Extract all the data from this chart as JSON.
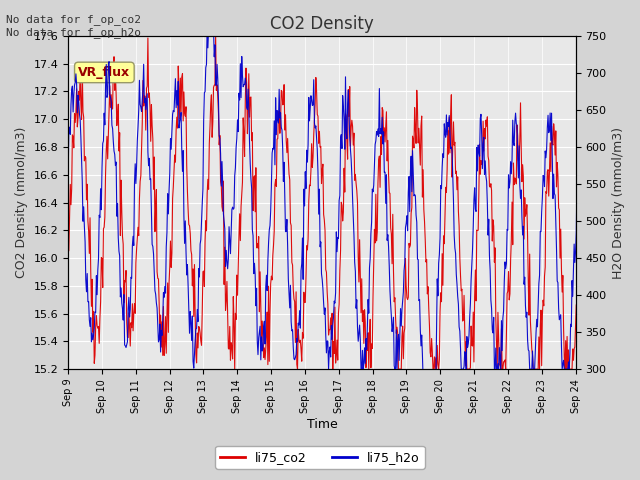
{
  "title": "CO2 Density",
  "xlabel": "Time",
  "ylabel_left": "CO2 Density (mmol/m3)",
  "ylabel_right": "H2O Density (mmol/m3)",
  "top_left_text": "No data for f_op_co2\nNo data for f_op_h2o",
  "vr_flux_label": "VR_flux",
  "ylim_left": [
    15.2,
    17.6
  ],
  "ylim_right": [
    300,
    750
  ],
  "yticks_left": [
    15.2,
    15.4,
    15.6,
    15.8,
    16.0,
    16.2,
    16.4,
    16.6,
    16.8,
    17.0,
    17.2,
    17.4,
    17.6
  ],
  "yticks_right": [
    300,
    350,
    400,
    450,
    500,
    550,
    600,
    650,
    700,
    750
  ],
  "x_tick_labels": [
    "Sep 9",
    "Sep 10",
    "Sep 11",
    "Sep 12",
    "Sep 13",
    "Sep 14",
    "Sep 15",
    "Sep 16",
    "Sep 17",
    "Sep 18",
    "Sep 19",
    "Sep 20",
    "Sep 21",
    "Sep 22",
    "Sep 23",
    "Sep 24"
  ],
  "color_co2": "#dd0000",
  "color_h2o": "#0000cc",
  "legend_labels": [
    "li75_co2",
    "li75_h2o"
  ],
  "bg_color": "#e8e8e8",
  "plot_bg_color": "#e8e8e8",
  "grid_color": "#ffffff",
  "vr_flux_bg": "#ffff99",
  "vr_flux_text_color": "#990000",
  "top_text_color": "#333333",
  "title_color": "#333333"
}
